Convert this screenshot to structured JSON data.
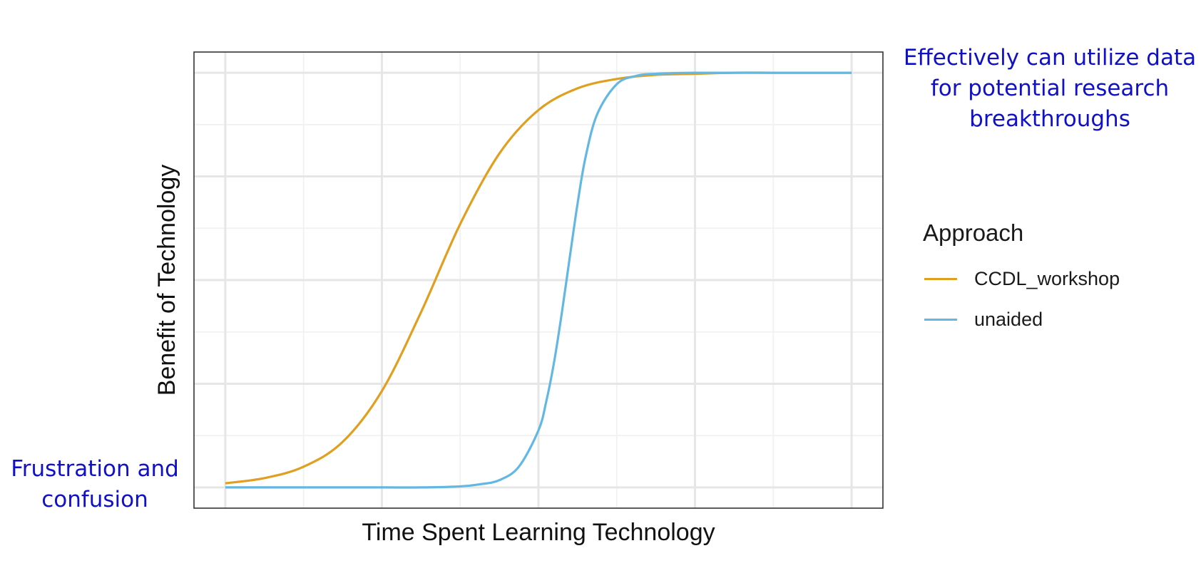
{
  "chart_data": {
    "type": "line",
    "xlabel": "Time Spent Learning Technology",
    "ylabel": "Benefit of Technology",
    "xlim": [
      -0.4,
      8.4
    ],
    "ylim": [
      -0.2,
      4.2
    ],
    "grid": true,
    "tick_labels": false,
    "legend": {
      "title": "Approach",
      "position": "right"
    },
    "series": [
      {
        "name": "CCDL_workshop",
        "color": "#E09F1F",
        "x": [
          0,
          0.5,
          1,
          1.5,
          2,
          2.5,
          3,
          3.5,
          4,
          4.5,
          5,
          5.5,
          6,
          6.5,
          7,
          7.5,
          8
        ],
        "y": [
          0.04,
          0.09,
          0.2,
          0.44,
          0.93,
          1.69,
          2.54,
          3.22,
          3.64,
          3.85,
          3.94,
          3.98,
          3.99,
          4.0,
          4.0,
          4.0,
          4.0
        ]
      },
      {
        "name": "unaided",
        "color": "#62B8E3",
        "x": [
          0,
          1,
          2,
          2.5,
          3,
          3.25,
          3.5,
          3.75,
          4,
          4.1,
          4.2,
          4.3,
          4.4,
          4.5,
          4.6,
          4.75,
          5,
          5.25,
          5.5,
          6,
          7,
          8
        ],
        "y": [
          0,
          0,
          0,
          0,
          0.01,
          0.03,
          0.07,
          0.2,
          0.55,
          0.83,
          1.21,
          1.69,
          2.22,
          2.74,
          3.18,
          3.6,
          3.89,
          3.97,
          3.99,
          4.0,
          4.0,
          4.0
        ]
      }
    ]
  },
  "annotations": {
    "top_right": [
      "Effectively can utilize data",
      "for potential research",
      "breakthroughs"
    ],
    "bottom_left": [
      "Frustration and",
      "confusion"
    ]
  }
}
